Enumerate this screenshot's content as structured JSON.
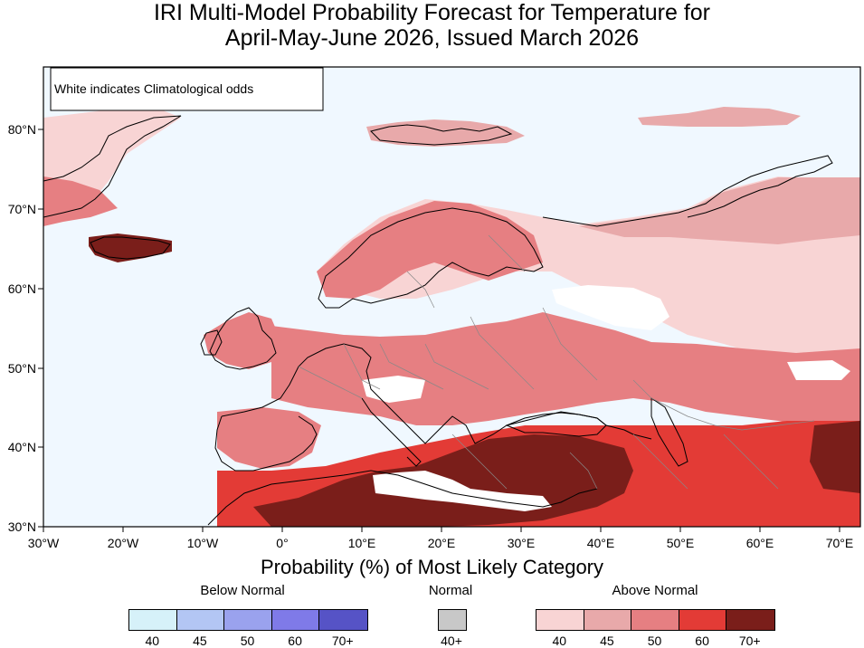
{
  "title": {
    "line1": "IRI Multi-Model Probability Forecast for Temperature for",
    "line2": "April-May-June 2026, Issued March 2026"
  },
  "map": {
    "note": "White indicates Climatological odds",
    "lon_labels": [
      "30°W",
      "20°W",
      "10°W",
      "0°",
      "10°E",
      "20°E",
      "30°E",
      "40°E",
      "50°E",
      "60°E",
      "70°E"
    ],
    "lat_labels": [
      "80°N",
      "70°N",
      "60°N",
      "50°N",
      "40°N",
      "30°N"
    ],
    "ocean_color": "#f0f8ff",
    "coastline_color": "#000000",
    "border_color": "#888888"
  },
  "legend": {
    "title": "Probability (%) of Most Likely Category",
    "below": {
      "label": "Below Normal",
      "swatches": [
        {
          "label": "40",
          "color": "#d6f1f9"
        },
        {
          "label": "45",
          "color": "#b3c6f4"
        },
        {
          "label": "50",
          "color": "#9aa2ee"
        },
        {
          "label": "60",
          "color": "#7f7ae8"
        },
        {
          "label": "70+",
          "color": "#5653c6"
        }
      ]
    },
    "normal": {
      "label": "Normal",
      "swatches": [
        {
          "label": "40+",
          "color": "#c8c8c8"
        }
      ]
    },
    "above": {
      "label": "Above Normal",
      "swatches": [
        {
          "label": "40",
          "color": "#f8d4d4"
        },
        {
          "label": "45",
          "color": "#e8a9aa"
        },
        {
          "label": "50",
          "color": "#e67f82"
        },
        {
          "label": "60",
          "color": "#e33b36"
        },
        {
          "label": "70+",
          "color": "#7a1e1a"
        }
      ]
    }
  }
}
